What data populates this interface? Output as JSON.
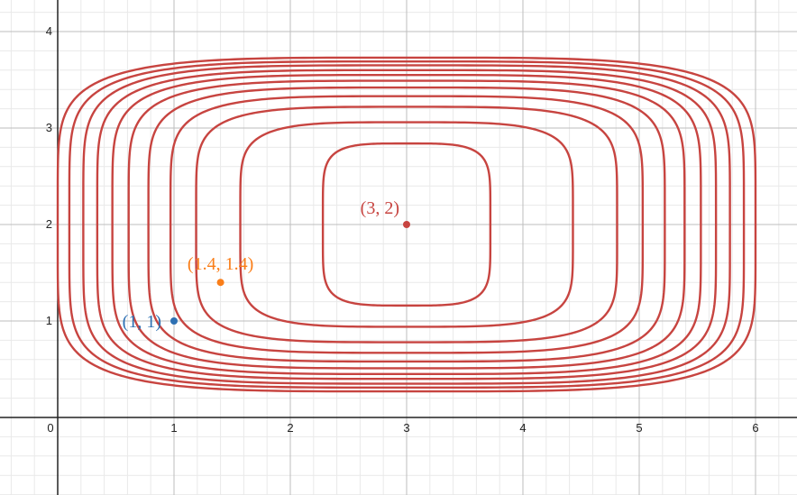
{
  "chart_data": {
    "type": "scatter",
    "grid": true,
    "xlim": [
      -0.5,
      6.35
    ],
    "ylim": [
      -0.8,
      4.3
    ],
    "x_ticks": [
      0,
      1,
      2,
      3,
      4,
      5,
      6
    ],
    "y_ticks": [
      1,
      2,
      3,
      4
    ],
    "x_tick_labels": [
      "0",
      "1",
      "2",
      "3",
      "4",
      "5",
      "6"
    ],
    "y_tick_labels": [
      "1",
      "2",
      "3",
      "4"
    ],
    "contours": {
      "center": [
        3,
        2
      ],
      "color": "#c74440",
      "x_exponent": 4,
      "y_exponent": 6,
      "x_half_widths": [
        0.72,
        1.43,
        1.81,
        2.03,
        2.22,
        2.39,
        2.53,
        2.66,
        2.78,
        2.9,
        3.0
      ],
      "y_half_heights": [
        0.84,
        1.06,
        1.22,
        1.33,
        1.42,
        1.49,
        1.55,
        1.6,
        1.65,
        1.69,
        1.73
      ]
    },
    "points": [
      {
        "x": 3,
        "y": 2,
        "label": "(3, 2)",
        "color": "#c74440"
      },
      {
        "x": 1.4,
        "y": 1.4,
        "label": "(1.4, 1.4)",
        "color": "#fa7e19"
      },
      {
        "x": 1,
        "y": 1,
        "label": "(1, 1)",
        "color": "#2d70b3"
      }
    ]
  }
}
